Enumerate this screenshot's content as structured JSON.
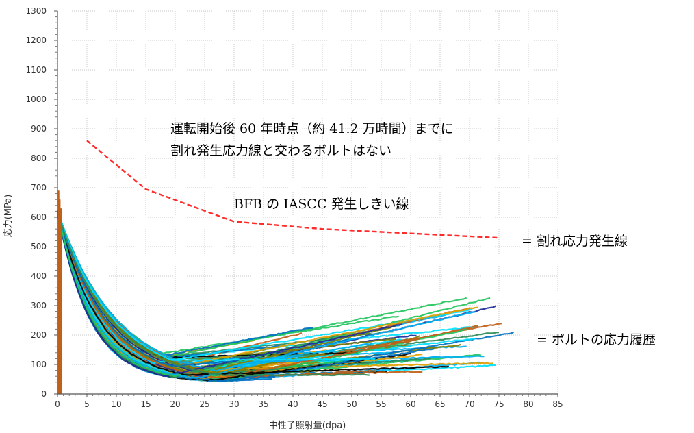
{
  "chart_data": {
    "type": "line",
    "title": "",
    "xlabel": "中性子照射量(dpa)",
    "ylabel": "応力(MPa)",
    "xlim": [
      0,
      85
    ],
    "ylim": [
      0,
      1300
    ],
    "xticks": [
      0,
      5,
      10,
      15,
      20,
      25,
      30,
      35,
      40,
      45,
      50,
      55,
      60,
      65,
      70,
      75,
      80,
      85
    ],
    "yticks": [
      0,
      100,
      200,
      300,
      400,
      500,
      600,
      700,
      800,
      900,
      1000,
      1100,
      1200,
      1300
    ],
    "grid": true,
    "series": [
      {
        "name": "BFB の IASCC 発生しきい線",
        "style": "dashed",
        "color": "#ff2a2a",
        "x": [
          5,
          15,
          30,
          45,
          60,
          75
        ],
        "y": [
          860,
          695,
          585,
          560,
          545,
          530
        ]
      },
      {
        "name": "ボルトの応力履歴",
        "style": "solid",
        "note_color_mix": [
          "#0070c0",
          "#00b0f0",
          "#00e0ff",
          "#22c55e",
          "#2e8b57",
          "#c06018",
          "#e0a000",
          "#808000",
          "#000000",
          "#1c2e9a"
        ],
        "x": [
          0,
          5,
          10,
          15,
          20,
          25
        ],
        "y": [
          620,
          370,
          230,
          140,
          90,
          70
        ]
      }
    ],
    "annotations": {
      "note_line1": "運転開始後 60 年時点（約 41.2 万時間）までに",
      "note_line2": "割れ発生応力線と交わるボルトはない",
      "threshold_label": "BFB の IASCC 発生しきい線",
      "legend_threshold": "= 割れ応力発生線",
      "legend_history": "= ボルトの応力履歴"
    }
  }
}
